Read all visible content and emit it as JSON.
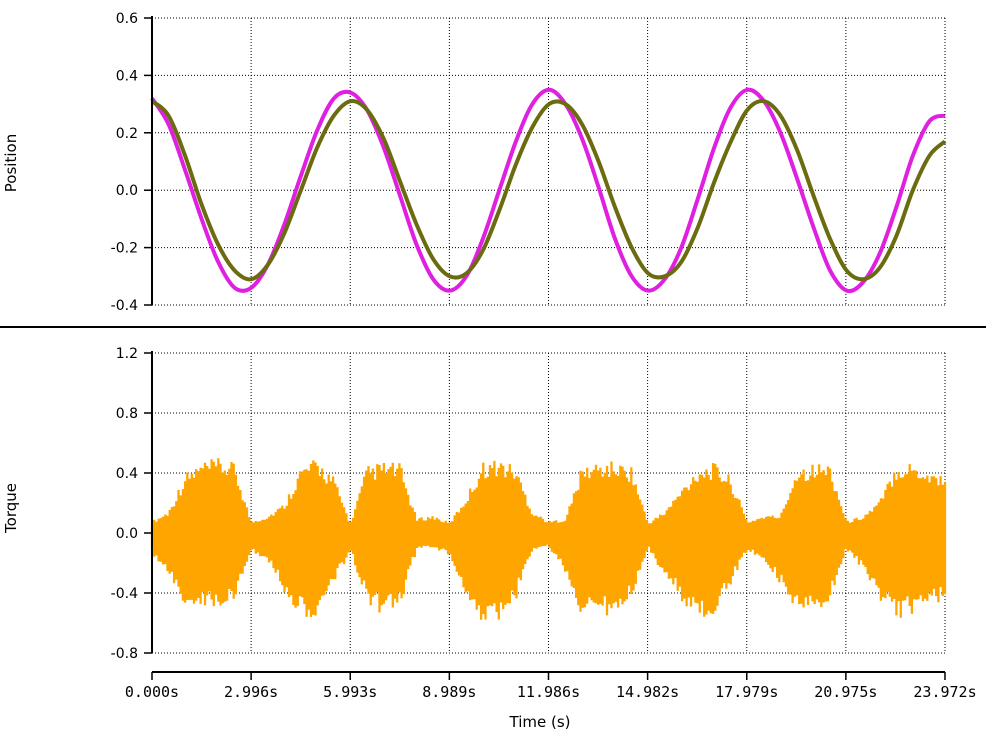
{
  "colors": {
    "position_series_a": "#e020e0",
    "position_series_b": "#6b6b10",
    "torque_series": "#ffa500",
    "grid": "#000000",
    "background": "#ffffff"
  },
  "chart_data": [
    {
      "type": "line",
      "ylabel": "Position",
      "xlim": [
        0.0,
        23.972
      ],
      "ylim": [
        -0.4,
        0.6
      ],
      "yticks": [
        -0.4,
        -0.2,
        0.0,
        0.2,
        0.4,
        0.6
      ],
      "ytick_labels": [
        "-0.4",
        "-0.2",
        "0.0",
        "0.2",
        "0.4",
        "0.6"
      ],
      "grid": true,
      "series": [
        {
          "color": "#e020e0",
          "x": [
            0.0,
            0.5,
            1.0,
            1.5,
            2.0,
            2.5,
            3.0,
            3.5,
            4.0,
            4.5,
            5.0,
            5.5,
            6.0,
            6.5,
            7.0,
            7.5,
            8.0,
            8.5,
            9.0,
            9.5,
            10.0,
            10.5,
            11.0,
            11.5,
            12.0,
            12.5,
            13.0,
            13.5,
            14.0,
            14.5,
            15.0,
            15.5,
            16.0,
            16.5,
            17.0,
            17.5,
            18.0,
            18.5,
            19.0,
            19.5,
            20.0,
            20.5,
            21.0,
            21.5,
            22.0,
            22.5,
            23.0,
            23.5,
            23.972
          ],
          "y": [
            0.32,
            0.23,
            0.07,
            -0.1,
            -0.25,
            -0.34,
            -0.34,
            -0.26,
            -0.12,
            0.05,
            0.21,
            0.32,
            0.34,
            0.28,
            0.15,
            -0.02,
            -0.19,
            -0.31,
            -0.35,
            -0.3,
            -0.17,
            0.0,
            0.17,
            0.3,
            0.35,
            0.3,
            0.18,
            0.01,
            -0.17,
            -0.3,
            -0.35,
            -0.31,
            -0.2,
            -0.03,
            0.15,
            0.29,
            0.35,
            0.31,
            0.2,
            0.04,
            -0.13,
            -0.28,
            -0.35,
            -0.32,
            -0.22,
            -0.06,
            0.12,
            0.24,
            0.26
          ]
        },
        {
          "color": "#6b6b10",
          "x": [
            0.0,
            0.5,
            1.0,
            1.5,
            2.0,
            2.5,
            3.0,
            3.5,
            4.0,
            4.5,
            5.0,
            5.5,
            6.0,
            6.5,
            7.0,
            7.5,
            8.0,
            8.5,
            9.0,
            9.5,
            10.0,
            10.5,
            11.0,
            11.5,
            12.0,
            12.5,
            13.0,
            13.5,
            14.0,
            14.5,
            15.0,
            15.5,
            16.0,
            16.5,
            17.0,
            17.5,
            18.0,
            18.5,
            19.0,
            19.5,
            20.0,
            20.5,
            21.0,
            21.5,
            22.0,
            22.5,
            23.0,
            23.5,
            23.972
          ],
          "y": [
            0.31,
            0.26,
            0.12,
            -0.05,
            -0.19,
            -0.28,
            -0.31,
            -0.26,
            -0.15,
            0.0,
            0.15,
            0.26,
            0.31,
            0.28,
            0.18,
            0.03,
            -0.12,
            -0.24,
            -0.3,
            -0.29,
            -0.21,
            -0.07,
            0.09,
            0.22,
            0.3,
            0.3,
            0.23,
            0.1,
            -0.06,
            -0.2,
            -0.29,
            -0.3,
            -0.25,
            -0.13,
            0.03,
            0.17,
            0.28,
            0.31,
            0.26,
            0.14,
            -0.02,
            -0.17,
            -0.28,
            -0.31,
            -0.27,
            -0.16,
            0.0,
            0.12,
            0.17
          ]
        }
      ]
    },
    {
      "type": "area",
      "ylabel": "Torque",
      "xlabel": "Time (s)",
      "xlim": [
        0.0,
        23.972
      ],
      "ylim": [
        -0.8,
        1.2
      ],
      "yticks": [
        -0.8,
        -0.4,
        0.0,
        0.4,
        0.8,
        1.2
      ],
      "ytick_labels": [
        "-0.8",
        "-0.4",
        "0.0",
        "0.4",
        "0.8",
        "1.2"
      ],
      "xticks": [
        0.0,
        2.996,
        5.993,
        8.989,
        11.986,
        14.982,
        17.979,
        20.975,
        23.972
      ],
      "xtick_labels": [
        "0.000s",
        "2.996s",
        "5.993s",
        "8.989s",
        "11.986s",
        "14.982s",
        "17.979s",
        "20.975s",
        "23.972s"
      ],
      "grid": true,
      "series": [
        {
          "color": "#ffa500",
          "x": [
            0.0,
            0.5,
            1.0,
            1.5,
            2.0,
            2.5,
            3.0,
            3.5,
            4.0,
            4.5,
            5.0,
            5.5,
            6.0,
            6.5,
            7.0,
            7.5,
            8.0,
            8.5,
            9.0,
            9.5,
            10.0,
            10.5,
            11.0,
            11.5,
            12.0,
            12.5,
            13.0,
            13.5,
            14.0,
            14.5,
            15.0,
            15.5,
            16.0,
            16.5,
            17.0,
            17.5,
            18.0,
            18.5,
            19.0,
            19.5,
            20.0,
            20.5,
            21.0,
            21.5,
            22.0,
            22.5,
            23.0,
            23.5,
            23.972
          ],
          "upper": [
            0.08,
            0.15,
            0.4,
            0.48,
            0.5,
            0.47,
            0.08,
            0.12,
            0.2,
            0.45,
            0.5,
            0.38,
            0.07,
            0.45,
            0.48,
            0.47,
            0.1,
            0.12,
            0.07,
            0.25,
            0.48,
            0.5,
            0.45,
            0.15,
            0.08,
            0.1,
            0.45,
            0.48,
            0.48,
            0.45,
            0.07,
            0.15,
            0.3,
            0.45,
            0.47,
            0.38,
            0.08,
            0.12,
            0.12,
            0.45,
            0.47,
            0.47,
            0.08,
            0.12,
            0.22,
            0.47,
            0.48,
            0.42,
            0.4
          ],
          "lower": [
            -0.15,
            -0.3,
            -0.48,
            -0.52,
            -0.5,
            -0.45,
            -0.12,
            -0.2,
            -0.4,
            -0.55,
            -0.58,
            -0.35,
            -0.12,
            -0.48,
            -0.55,
            -0.5,
            -0.12,
            -0.1,
            -0.15,
            -0.45,
            -0.6,
            -0.58,
            -0.45,
            -0.12,
            -0.1,
            -0.28,
            -0.55,
            -0.58,
            -0.52,
            -0.42,
            -0.1,
            -0.3,
            -0.45,
            -0.58,
            -0.55,
            -0.35,
            -0.12,
            -0.2,
            -0.35,
            -0.55,
            -0.55,
            -0.45,
            -0.12,
            -0.25,
            -0.45,
            -0.58,
            -0.55,
            -0.5,
            -0.45
          ]
        }
      ]
    }
  ]
}
